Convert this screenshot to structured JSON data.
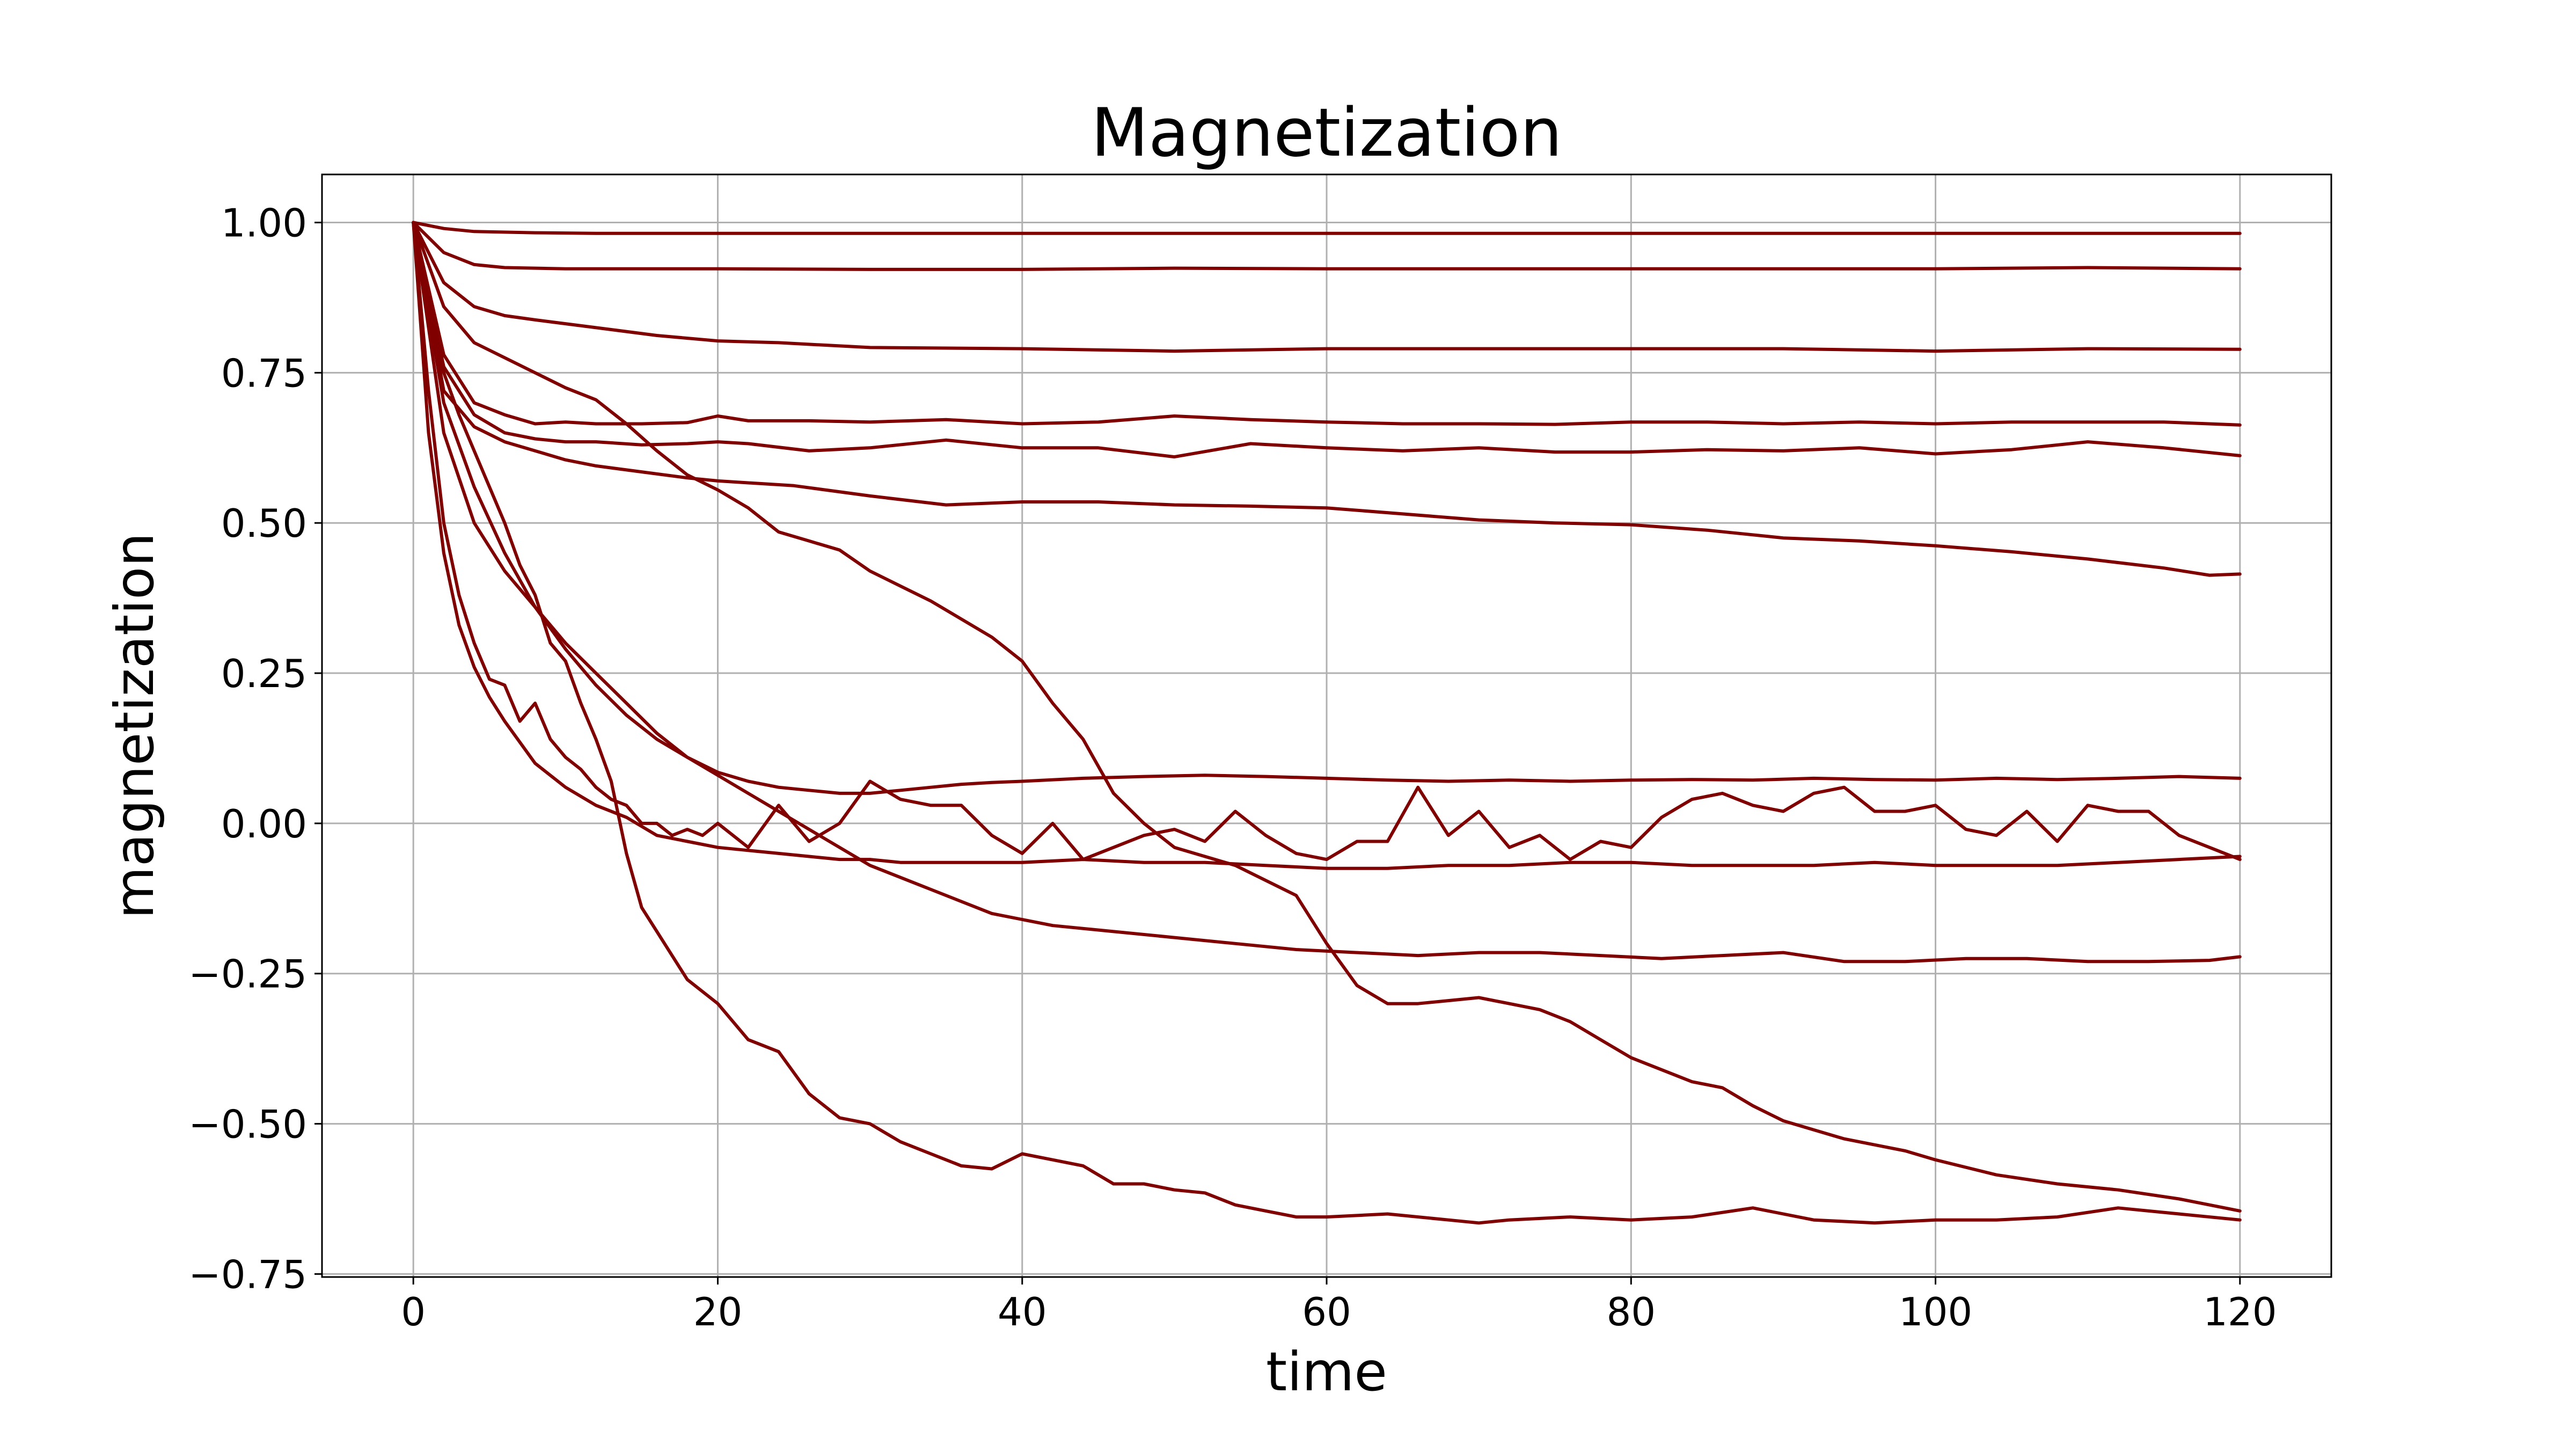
{
  "chart_data": {
    "type": "line",
    "title": "Magnetization",
    "xlabel": "time",
    "ylabel": "magnetization",
    "xlim": [
      -6,
      126
    ],
    "ylim": [
      -0.755,
      1.08
    ],
    "xticks": [
      0,
      20,
      40,
      60,
      80,
      100,
      120
    ],
    "xtick_labels": [
      "0",
      "20",
      "40",
      "60",
      "80",
      "100",
      "120"
    ],
    "yticks": [
      -0.75,
      -0.5,
      -0.25,
      0.0,
      0.25,
      0.5,
      0.75,
      1.0
    ],
    "ytick_labels": [
      "−0.75",
      "−0.50",
      "−0.25",
      "0.00",
      "0.25",
      "0.50",
      "0.75",
      "1.00"
    ],
    "grid": true,
    "legend": "none",
    "line_color": "#800000",
    "series": [
      {
        "x": [
          0,
          2,
          4,
          8,
          12,
          20,
          30,
          40,
          50,
          60,
          70,
          80,
          90,
          100,
          110,
          120
        ],
        "values": [
          1.0,
          0.99,
          0.985,
          0.983,
          0.982,
          0.982,
          0.982,
          0.982,
          0.982,
          0.982,
          0.982,
          0.982,
          0.982,
          0.982,
          0.982,
          0.982
        ]
      },
      {
        "x": [
          0,
          2,
          4,
          6,
          10,
          20,
          30,
          40,
          50,
          60,
          70,
          80,
          90,
          100,
          110,
          120
        ],
        "values": [
          1.0,
          0.95,
          0.93,
          0.925,
          0.923,
          0.923,
          0.922,
          0.922,
          0.924,
          0.923,
          0.923,
          0.923,
          0.923,
          0.923,
          0.925,
          0.923
        ]
      },
      {
        "x": [
          0,
          2,
          4,
          6,
          8,
          12,
          16,
          20,
          24,
          30,
          40,
          50,
          60,
          70,
          80,
          90,
          100,
          110,
          120
        ],
        "values": [
          1.0,
          0.9,
          0.86,
          0.845,
          0.838,
          0.825,
          0.812,
          0.803,
          0.8,
          0.792,
          0.79,
          0.786,
          0.79,
          0.79,
          0.79,
          0.79,
          0.786,
          0.79,
          0.789
        ]
      },
      {
        "x": [
          0,
          2,
          4,
          6,
          8,
          10,
          12,
          15,
          18,
          20,
          22,
          26,
          30,
          35,
          40,
          45,
          50,
          55,
          60,
          65,
          70,
          75,
          80,
          85,
          90,
          95,
          100,
          105,
          110,
          115,
          120
        ],
        "values": [
          1.0,
          0.78,
          0.7,
          0.68,
          0.665,
          0.668,
          0.665,
          0.665,
          0.667,
          0.678,
          0.67,
          0.67,
          0.668,
          0.672,
          0.665,
          0.668,
          0.678,
          0.672,
          0.668,
          0.665,
          0.665,
          0.664,
          0.668,
          0.668,
          0.665,
          0.668,
          0.665,
          0.668,
          0.668,
          0.668,
          0.663
        ]
      },
      {
        "x": [
          0,
          2,
          4,
          6,
          8,
          10,
          12,
          15,
          18,
          20,
          22,
          26,
          30,
          35,
          40,
          45,
          50,
          55,
          60,
          65,
          70,
          75,
          80,
          85,
          90,
          95,
          100,
          105,
          110,
          115,
          120
        ],
        "values": [
          1.0,
          0.76,
          0.68,
          0.65,
          0.64,
          0.635,
          0.635,
          0.63,
          0.632,
          0.635,
          0.632,
          0.62,
          0.625,
          0.638,
          0.625,
          0.625,
          0.61,
          0.632,
          0.625,
          0.62,
          0.625,
          0.618,
          0.618,
          0.622,
          0.62,
          0.625,
          0.615,
          0.622,
          0.635,
          0.625,
          0.612
        ]
      },
      {
        "x": [
          0,
          2,
          4,
          6,
          8,
          10,
          12,
          15,
          18,
          20,
          25,
          30,
          35,
          40,
          45,
          50,
          55,
          60,
          65,
          70,
          75,
          80,
          85,
          90,
          95,
          100,
          105,
          110,
          115,
          118,
          120
        ],
        "values": [
          1.0,
          0.72,
          0.66,
          0.635,
          0.62,
          0.605,
          0.595,
          0.585,
          0.575,
          0.57,
          0.562,
          0.545,
          0.53,
          0.535,
          0.535,
          0.53,
          0.528,
          0.525,
          0.515,
          0.505,
          0.5,
          0.497,
          0.488,
          0.475,
          0.47,
          0.462,
          0.452,
          0.44,
          0.425,
          0.413,
          0.415
        ]
      },
      {
        "x": [
          0,
          2,
          4,
          6,
          8,
          10,
          12,
          14,
          16,
          18,
          20,
          22,
          24,
          26,
          28,
          30,
          32,
          34,
          36,
          38,
          40,
          42,
          44,
          46,
          48,
          50,
          54,
          58,
          60,
          62,
          64,
          66,
          68,
          70,
          72,
          74,
          76,
          78,
          80,
          82,
          84,
          86,
          88,
          90,
          94,
          98,
          100,
          104,
          108,
          112,
          116,
          118,
          120
        ],
        "values": [
          1.0,
          0.86,
          0.8,
          0.775,
          0.75,
          0.725,
          0.705,
          0.665,
          0.62,
          0.58,
          0.555,
          0.525,
          0.485,
          0.47,
          0.455,
          0.42,
          0.395,
          0.37,
          0.34,
          0.31,
          0.27,
          0.2,
          0.14,
          0.05,
          0.0,
          -0.04,
          -0.07,
          -0.12,
          -0.2,
          -0.27,
          -0.3,
          -0.3,
          -0.295,
          -0.29,
          -0.3,
          -0.31,
          -0.33,
          -0.36,
          -0.39,
          -0.41,
          -0.43,
          -0.44,
          -0.47,
          -0.495,
          -0.525,
          -0.545,
          -0.56,
          -0.585,
          -0.6,
          -0.61,
          -0.625,
          -0.635,
          -0.645
        ]
      },
      {
        "x": [
          0,
          2,
          4,
          6,
          8,
          10,
          12,
          14,
          16,
          18,
          20,
          22,
          24,
          26,
          28,
          30,
          32,
          34,
          36,
          38,
          40,
          44,
          48,
          52,
          56,
          60,
          64,
          68,
          72,
          76,
          80,
          84,
          88,
          92,
          96,
          100,
          104,
          108,
          112,
          116,
          120
        ],
        "values": [
          1.0,
          0.7,
          0.56,
          0.45,
          0.36,
          0.29,
          0.23,
          0.18,
          0.14,
          0.11,
          0.085,
          0.07,
          0.06,
          0.055,
          0.05,
          0.05,
          0.055,
          0.06,
          0.065,
          0.068,
          0.07,
          0.075,
          0.078,
          0.08,
          0.078,
          0.075,
          0.072,
          0.07,
          0.072,
          0.07,
          0.072,
          0.073,
          0.072,
          0.075,
          0.073,
          0.072,
          0.075,
          0.073,
          0.075,
          0.078,
          0.075
        ]
      },
      {
        "x": [
          0,
          1,
          2,
          3,
          4,
          5,
          6,
          7,
          8,
          9,
          10,
          11,
          12,
          13,
          14,
          15,
          16,
          17,
          18,
          19,
          20,
          22,
          24,
          26,
          28,
          30,
          32,
          34,
          36,
          38,
          40,
          42,
          44,
          46,
          48,
          50,
          52,
          54,
          56,
          58,
          60,
          62,
          64,
          66,
          68,
          70,
          72,
          74,
          76,
          78,
          80,
          82,
          84,
          86,
          88,
          90,
          92,
          94,
          96,
          98,
          100,
          102,
          104,
          106,
          108,
          110,
          112,
          114,
          116,
          118,
          120
        ],
        "values": [
          1.0,
          0.72,
          0.5,
          0.38,
          0.3,
          0.24,
          0.23,
          0.17,
          0.2,
          0.14,
          0.11,
          0.09,
          0.06,
          0.04,
          0.03,
          0.0,
          0.0,
          -0.02,
          -0.01,
          -0.02,
          0.0,
          -0.04,
          0.03,
          -0.03,
          0.0,
          0.07,
          0.04,
          0.03,
          0.03,
          -0.02,
          -0.05,
          0.0,
          -0.06,
          -0.04,
          -0.02,
          -0.01,
          -0.03,
          0.02,
          -0.02,
          -0.05,
          -0.06,
          -0.03,
          -0.03,
          0.06,
          -0.02,
          0.02,
          -0.04,
          -0.02,
          -0.06,
          -0.03,
          -0.04,
          0.01,
          0.04,
          0.05,
          0.03,
          0.02,
          0.05,
          0.06,
          0.02,
          0.02,
          0.03,
          -0.01,
          -0.02,
          0.02,
          -0.03,
          0.03,
          0.02,
          0.02,
          -0.02,
          -0.04,
          -0.06
        ]
      },
      {
        "x": [
          0,
          1,
          2,
          3,
          4,
          5,
          6,
          8,
          10,
          12,
          14,
          16,
          18,
          20,
          22,
          24,
          26,
          28,
          30,
          32,
          36,
          40,
          44,
          48,
          52,
          56,
          60,
          64,
          68,
          72,
          76,
          80,
          84,
          88,
          92,
          96,
          100,
          104,
          108,
          112,
          116,
          120
        ],
        "values": [
          1.0,
          0.65,
          0.45,
          0.33,
          0.26,
          0.21,
          0.17,
          0.1,
          0.06,
          0.03,
          0.01,
          -0.02,
          -0.03,
          -0.04,
          -0.045,
          -0.05,
          -0.055,
          -0.06,
          -0.06,
          -0.065,
          -0.065,
          -0.065,
          -0.06,
          -0.065,
          -0.065,
          -0.07,
          -0.075,
          -0.075,
          -0.07,
          -0.07,
          -0.065,
          -0.065,
          -0.07,
          -0.07,
          -0.07,
          -0.065,
          -0.07,
          -0.07,
          -0.07,
          -0.065,
          -0.06,
          -0.055
        ]
      },
      {
        "x": [
          0,
          2,
          4,
          6,
          8,
          10,
          12,
          14,
          16,
          18,
          20,
          22,
          24,
          26,
          28,
          30,
          34,
          38,
          42,
          46,
          50,
          54,
          58,
          62,
          66,
          70,
          74,
          78,
          82,
          86,
          90,
          94,
          98,
          102,
          106,
          110,
          114,
          118,
          120
        ],
        "values": [
          1.0,
          0.65,
          0.5,
          0.42,
          0.36,
          0.3,
          0.25,
          0.2,
          0.15,
          0.11,
          0.08,
          0.05,
          0.02,
          -0.01,
          -0.04,
          -0.07,
          -0.11,
          -0.15,
          -0.17,
          -0.18,
          -0.19,
          -0.2,
          -0.21,
          -0.215,
          -0.22,
          -0.215,
          -0.215,
          -0.22,
          -0.225,
          -0.22,
          -0.215,
          -0.23,
          -0.23,
          -0.225,
          -0.225,
          -0.23,
          -0.23,
          -0.228,
          -0.222
        ]
      },
      {
        "x": [
          0,
          1,
          2,
          3,
          4,
          5,
          6,
          7,
          8,
          9,
          10,
          11,
          12,
          13,
          14,
          15,
          16,
          18,
          20,
          22,
          24,
          26,
          28,
          30,
          32,
          34,
          36,
          38,
          40,
          42,
          44,
          46,
          48,
          50,
          52,
          54,
          56,
          58,
          60,
          64,
          68,
          70,
          72,
          76,
          80,
          84,
          88,
          92,
          96,
          100,
          104,
          108,
          112,
          116,
          120
        ],
        "values": [
          1.0,
          0.85,
          0.75,
          0.68,
          0.62,
          0.56,
          0.5,
          0.43,
          0.38,
          0.3,
          0.27,
          0.2,
          0.14,
          0.07,
          -0.05,
          -0.14,
          -0.18,
          -0.26,
          -0.3,
          -0.36,
          -0.38,
          -0.45,
          -0.49,
          -0.5,
          -0.53,
          -0.55,
          -0.57,
          -0.575,
          -0.55,
          -0.56,
          -0.57,
          -0.6,
          -0.6,
          -0.61,
          -0.615,
          -0.635,
          -0.645,
          -0.655,
          -0.655,
          -0.65,
          -0.66,
          -0.665,
          -0.66,
          -0.655,
          -0.66,
          -0.655,
          -0.64,
          -0.66,
          -0.665,
          -0.66,
          -0.66,
          -0.655,
          -0.64,
          -0.65,
          -0.66
        ]
      }
    ]
  }
}
